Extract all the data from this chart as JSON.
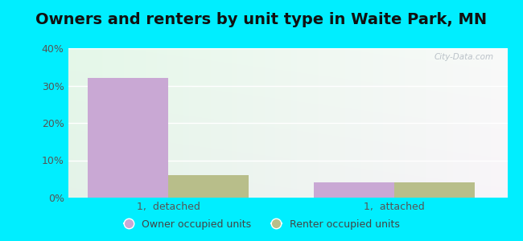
{
  "title": "Owners and renters by unit type in Waite Park, MN",
  "categories": [
    "1,  detached",
    "1,  attached"
  ],
  "owner_values": [
    32,
    4
  ],
  "renter_values": [
    6,
    4
  ],
  "owner_color": "#c9a8d4",
  "renter_color": "#b8be8a",
  "ylim": [
    0,
    40
  ],
  "yticks": [
    0,
    10,
    20,
    30,
    40
  ],
  "ytick_labels": [
    "0%",
    "10%",
    "20%",
    "30%",
    "40%"
  ],
  "bar_width": 0.32,
  "legend_owner": "Owner occupied units",
  "legend_renter": "Renter occupied units",
  "title_fontsize": 14,
  "watermark": "City-Data.com",
  "outer_bg": "#00eeff",
  "plot_bg_top": "#f5fff8",
  "plot_bg_bottom": "#e0f5e8"
}
